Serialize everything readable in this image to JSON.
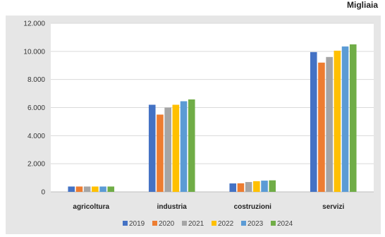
{
  "header": {
    "label": "Migliaia"
  },
  "chart_data": {
    "type": "bar",
    "categories": [
      "agricoltura",
      "industria",
      "costruzioni",
      "servizi"
    ],
    "series": [
      {
        "name": "2019",
        "color": "#4472c4",
        "values": [
          380,
          6200,
          600,
          9950
        ]
      },
      {
        "name": "2020",
        "color": "#ed7d31",
        "values": [
          380,
          5500,
          610,
          9200
        ]
      },
      {
        "name": "2021",
        "color": "#a5a5a5",
        "values": [
          380,
          6000,
          700,
          9600
        ]
      },
      {
        "name": "2022",
        "color": "#ffc000",
        "values": [
          380,
          6200,
          760,
          10050
        ]
      },
      {
        "name": "2023",
        "color": "#5b9bd5",
        "values": [
          380,
          6450,
          800,
          10350
        ]
      },
      {
        "name": "2024",
        "color": "#70ad47",
        "values": [
          380,
          6580,
          820,
          10500
        ]
      }
    ],
    "y_ticks": [
      "0",
      "2.000",
      "4.000",
      "6.000",
      "8.000",
      "10.000",
      "12.000"
    ],
    "ylim": [
      0,
      12000
    ],
    "grid": true,
    "legend_position": "bottom"
  }
}
